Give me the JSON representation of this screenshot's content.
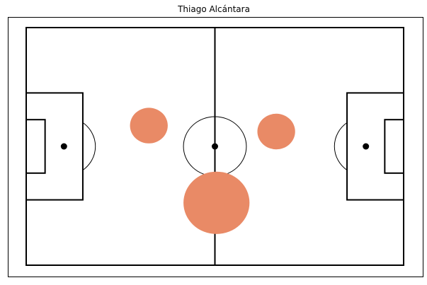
{
  "chart_data": {
    "type": "scatter",
    "title": "Thiago Alcántara",
    "xlabel": "",
    "ylabel": "",
    "xlim": [
      0,
      120
    ],
    "ylim": [
      0,
      80
    ],
    "pitch": {
      "length": 120,
      "width": 80,
      "penalty_area_depth": 18,
      "penalty_area_width": 36,
      "goal_area_depth": 6,
      "goal_area_width": 18,
      "penalty_spot_distance": 12,
      "center_circle_radius": 10,
      "line_color": "#000000",
      "background": "#ffffff"
    },
    "marker_color": "#e98a66",
    "series": [
      {
        "values": [
          {
            "x": 39.0,
            "y": 47.0,
            "size": 6.0
          },
          {
            "x": 79.5,
            "y": 45.0,
            "size": 6.0
          },
          {
            "x": 60.5,
            "y": 21.0,
            "size": 10.5
          }
        ]
      }
    ]
  }
}
